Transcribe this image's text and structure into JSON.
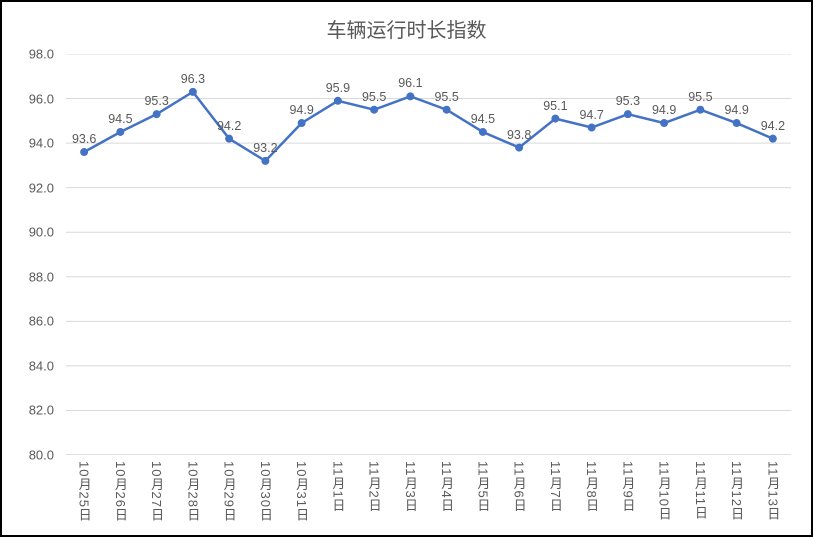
{
  "chart": {
    "type": "line",
    "title": "车辆运行时长指数",
    "title_fontsize": 20,
    "title_color": "#595959",
    "background_color": "#ffffff",
    "border_color": "#000000",
    "categories": [
      "10月25日",
      "10月26日",
      "10月27日",
      "10月28日",
      "10月29日",
      "10月30日",
      "10月31日",
      "11月1日",
      "11月2日",
      "11月3日",
      "11月4日",
      "11月5日",
      "11月6日",
      "11月7日",
      "11月8日",
      "11月9日",
      "11月10日",
      "11月11日",
      "11月12日",
      "11月13日"
    ],
    "values": [
      93.6,
      94.5,
      95.3,
      96.3,
      94.2,
      93.2,
      94.9,
      95.9,
      95.5,
      96.1,
      95.5,
      94.5,
      93.8,
      95.1,
      94.7,
      95.3,
      94.9,
      95.5,
      94.9,
      94.2
    ],
    "y_axis": {
      "min": 80.0,
      "max": 98.0,
      "step": 2.0,
      "ticks": [
        80.0,
        82.0,
        84.0,
        86.0,
        88.0,
        90.0,
        92.0,
        94.0,
        96.0,
        98.0
      ]
    },
    "line_color": "#4472c4",
    "line_width": 2.5,
    "marker_color": "#4472c4",
    "marker_radius": 4,
    "grid_color": "#d9d9d9",
    "axis_color": "#bfbfbf",
    "tickmark_color": "#bfbfbf",
    "label_color": "#595959",
    "label_fontsize": 13,
    "data_label_fontsize": 12.5,
    "data_label_color": "#595959"
  }
}
